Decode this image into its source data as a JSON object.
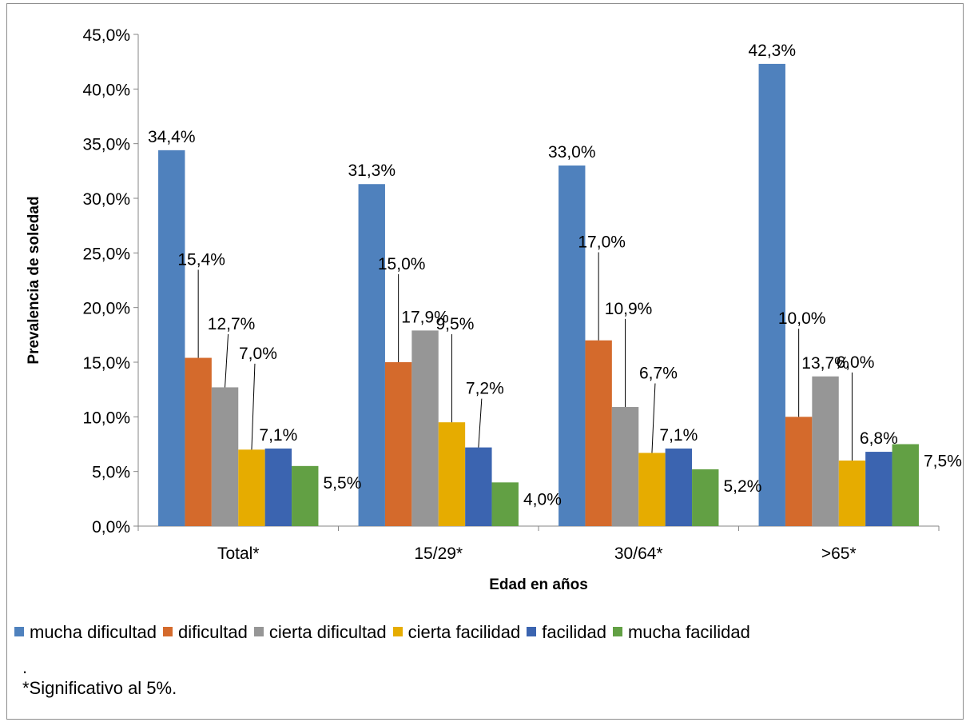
{
  "chart_data": {
    "type": "bar",
    "title": "",
    "xlabel": "Edad en años",
    "ylabel": "Prevalencia de soledad",
    "ylim": [
      0,
      45
    ],
    "yticks": [
      "0,0%",
      "5,0%",
      "10,0%",
      "15,0%",
      "20,0%",
      "25,0%",
      "30,0%",
      "35,0%",
      "40,0%",
      "45,0%"
    ],
    "categories": [
      "Total*",
      "15/29*",
      "30/64*",
      ">65*"
    ],
    "legend_position": "bottom",
    "grid": false,
    "series": [
      {
        "name": "mucha dificultad",
        "color": "#4f81bd",
        "values": [
          34.4,
          31.3,
          33.0,
          42.3
        ],
        "labels": [
          "34,4%",
          "31,3%",
          "33,0%",
          "42,3%"
        ]
      },
      {
        "name": "dificultad",
        "color": "#d46a2c",
        "values": [
          15.4,
          15.0,
          17.0,
          10.0
        ],
        "labels": [
          "15,4%",
          "15,0%",
          "17,0%",
          "10,0%"
        ]
      },
      {
        "name": "cierta dificultad",
        "color": "#969696",
        "values": [
          12.7,
          17.9,
          10.9,
          13.7
        ],
        "labels": [
          "12,7%",
          "17,9%",
          "10,9%",
          "13,7%"
        ]
      },
      {
        "name": "cierta facilidad",
        "color": "#e6ac00",
        "values": [
          7.0,
          9.5,
          6.7,
          6.0
        ],
        "labels": [
          "7,0%",
          "9,5%",
          "6,7%",
          "6,0%"
        ]
      },
      {
        "name": "facilidad",
        "color": "#3b64b0",
        "values": [
          7.1,
          7.2,
          7.1,
          6.8
        ],
        "labels": [
          "7,1%",
          "7,2%",
          "7,1%",
          "6,8%"
        ]
      },
      {
        "name": "mucha facilidad",
        "color": "#62a044",
        "values": [
          5.5,
          4.0,
          5.2,
          7.5
        ],
        "labels": [
          "5,5%",
          "4,0%",
          "5,2%",
          "7,5%"
        ]
      }
    ]
  },
  "notes": {
    "dot": ".",
    "footnote": "*Significativo al 5%."
  }
}
